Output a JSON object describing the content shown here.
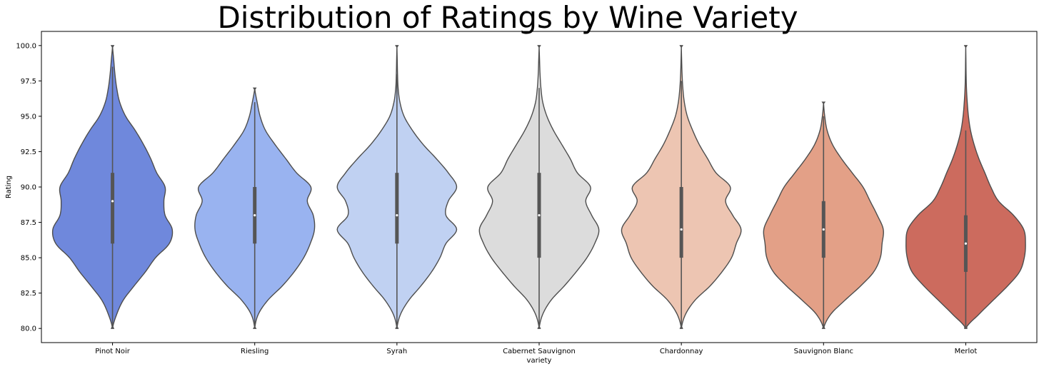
{
  "chart_data": {
    "type": "violin",
    "title": "Distribution of Ratings by Wine Variety",
    "xlabel": "variety",
    "ylabel": "Rating",
    "ylim": [
      79.0,
      101.0
    ],
    "yticks": [
      80.0,
      82.5,
      85.0,
      87.5,
      90.0,
      92.5,
      95.0,
      97.5,
      100.0
    ],
    "ytick_labels": [
      "80.0",
      "82.5",
      "85.0",
      "87.5",
      "90.0",
      "92.5",
      "95.0",
      "97.5",
      "100.0"
    ],
    "grid": false,
    "legend": "none",
    "categories": [
      "Pinot Noir",
      "Riesling",
      "Syrah",
      "Cabernet Sauvignon",
      "Chardonnay",
      "Sauvignon Blanc",
      "Merlot"
    ],
    "colors": [
      "#6f88dc",
      "#99b3f0",
      "#c0d1f2",
      "#dcdcdc",
      "#edc5b2",
      "#e3a087",
      "#cc6b5e"
    ],
    "stats": [
      {
        "min": 80,
        "q1": 86,
        "median": 89,
        "q3": 91,
        "whisker_low": 80,
        "whisker_high": 98.5,
        "max": 100
      },
      {
        "min": 80,
        "q1": 86,
        "median": 88,
        "q3": 90,
        "whisker_low": 80,
        "whisker_high": 96,
        "max": 97
      },
      {
        "min": 80,
        "q1": 86,
        "median": 88,
        "q3": 91,
        "whisker_low": 80,
        "whisker_high": 98,
        "max": 100
      },
      {
        "min": 80,
        "q1": 85,
        "median": 88,
        "q3": 91,
        "whisker_low": 80,
        "whisker_high": 97,
        "max": 100
      },
      {
        "min": 80,
        "q1": 85,
        "median": 87,
        "q3": 90,
        "whisker_low": 80,
        "whisker_high": 97.5,
        "max": 100
      },
      {
        "min": 80,
        "q1": 85,
        "median": 87,
        "q3": 89,
        "whisker_low": 80,
        "whisker_high": 95,
        "max": 96
      },
      {
        "min": 80,
        "q1": 84,
        "median": 86,
        "q3": 88,
        "whisker_low": 80,
        "whisker_high": 94,
        "max": 100
      }
    ],
    "density_grid": [
      80,
      81,
      82,
      83,
      84,
      85,
      86,
      87,
      88,
      89,
      90,
      91,
      92,
      93,
      94,
      95,
      96,
      97,
      98,
      99,
      100
    ],
    "densities": [
      [
        0.0,
        0.07,
        0.18,
        0.36,
        0.55,
        0.72,
        0.95,
        1.0,
        0.88,
        0.86,
        0.88,
        0.74,
        0.64,
        0.52,
        0.38,
        0.22,
        0.12,
        0.07,
        0.04,
        0.02,
        0.0
      ],
      [
        0.0,
        0.06,
        0.22,
        0.46,
        0.66,
        0.82,
        0.93,
        1.0,
        0.98,
        0.88,
        0.94,
        0.7,
        0.52,
        0.34,
        0.18,
        0.09,
        0.04,
        0.0,
        0.0,
        0.0,
        0.0
      ],
      [
        0.0,
        0.06,
        0.2,
        0.4,
        0.58,
        0.72,
        0.82,
        1.0,
        0.82,
        0.86,
        1.0,
        0.86,
        0.66,
        0.44,
        0.26,
        0.12,
        0.05,
        0.02,
        0.01,
        0.005,
        0.0
      ],
      [
        0.0,
        0.06,
        0.2,
        0.42,
        0.62,
        0.8,
        0.93,
        1.0,
        0.88,
        0.78,
        0.86,
        0.64,
        0.52,
        0.38,
        0.24,
        0.13,
        0.06,
        0.03,
        0.015,
        0.007,
        0.0
      ],
      [
        0.0,
        0.07,
        0.23,
        0.48,
        0.68,
        0.84,
        0.92,
        1.0,
        0.86,
        0.74,
        0.82,
        0.58,
        0.44,
        0.3,
        0.19,
        0.1,
        0.05,
        0.025,
        0.012,
        0.005,
        0.0
      ],
      [
        0.0,
        0.12,
        0.36,
        0.62,
        0.84,
        0.95,
        0.98,
        1.0,
        0.9,
        0.78,
        0.66,
        0.48,
        0.3,
        0.15,
        0.06,
        0.02,
        0.0,
        0.0,
        0.0,
        0.0,
        0.0
      ],
      [
        0.0,
        0.22,
        0.46,
        0.7,
        0.9,
        0.98,
        1.0,
        0.97,
        0.8,
        0.55,
        0.42,
        0.32,
        0.22,
        0.14,
        0.08,
        0.045,
        0.025,
        0.012,
        0.006,
        0.003,
        0.0
      ]
    ]
  }
}
